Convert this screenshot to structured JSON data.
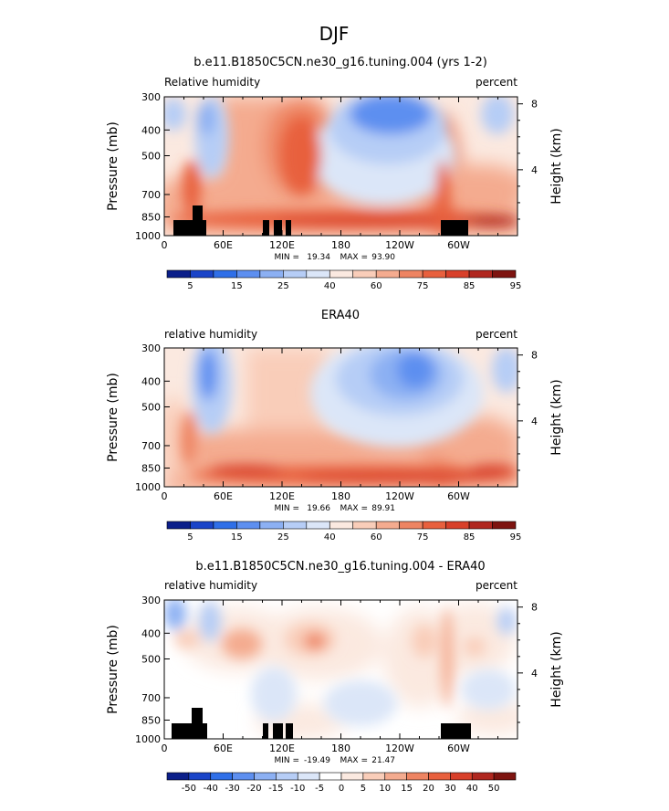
{
  "figure": {
    "title": "DJF"
  },
  "palette": {
    "abs": [
      "#0b1f8a",
      "#1a44c8",
      "#2f6fe8",
      "#5d8ff0",
      "#8cb0f3",
      "#b6cdf6",
      "#dbe6f8",
      "#fbe9e0",
      "#f9cdb9",
      "#f4ab8f",
      "#ee8462",
      "#e8603e",
      "#d8402a",
      "#b0271f",
      "#7e1410"
    ],
    "diff": [
      "#0b1f8a",
      "#1a44c8",
      "#2f6fe8",
      "#5d8ff0",
      "#8cb0f3",
      "#b6cdf6",
      "#dbe6f8",
      "#ffffff",
      "#fbe9e0",
      "#f9cdb9",
      "#f4ab8f",
      "#ee8462",
      "#e8603e",
      "#d8402a",
      "#b0271f",
      "#7e1410"
    ],
    "topography": "#000000"
  },
  "chart_data": [
    {
      "type": "heatmap",
      "title": "b.e11.B1850C5CN.ne30_g16.tuning.004 (yrs 1-2)",
      "left_string": "Relative humidity",
      "right_string": "percent",
      "ylabel": "Pressure (mb)",
      "ylabel_right": "Height (km)",
      "x_ticks": [
        "0",
        "60E",
        "120E",
        "180",
        "120W",
        "60W"
      ],
      "y_ticks": [
        "300",
        "400",
        "500",
        "700",
        "850",
        "1000"
      ],
      "y_right_ticks": [
        "8",
        "4"
      ],
      "stats": {
        "min_label": "MIN =",
        "min": "19.34",
        "max_label": "MAX =",
        "max": "93.90"
      },
      "colorbar_labels": [
        "5",
        "15",
        "25",
        "40",
        "60",
        "75",
        "85",
        "95"
      ],
      "levels": [
        5,
        10,
        15,
        20,
        25,
        30,
        40,
        50,
        60,
        70,
        75,
        80,
        85,
        90,
        95
      ]
    },
    {
      "type": "heatmap",
      "title": "ERA40",
      "left_string": "relative humidity",
      "right_string": "percent",
      "ylabel": "Pressure (mb)",
      "ylabel_right": "Height (km)",
      "x_ticks": [
        "0",
        "60E",
        "120E",
        "180",
        "120W",
        "60W"
      ],
      "y_ticks": [
        "300",
        "400",
        "500",
        "700",
        "850",
        "1000"
      ],
      "y_right_ticks": [
        "8",
        "4"
      ],
      "stats": {
        "min_label": "MIN =",
        "min": "19.66",
        "max_label": "MAX =",
        "max": "89.91"
      },
      "colorbar_labels": [
        "5",
        "15",
        "25",
        "40",
        "60",
        "75",
        "85",
        "95"
      ],
      "levels": [
        5,
        10,
        15,
        20,
        25,
        30,
        40,
        50,
        60,
        70,
        75,
        80,
        85,
        90,
        95
      ]
    },
    {
      "type": "heatmap",
      "title": "b.e11.B1850C5CN.ne30_g16.tuning.004 - ERA40",
      "left_string": "relative humidity",
      "right_string": "percent",
      "ylabel": "Pressure (mb)",
      "ylabel_right": "Height (km)",
      "x_ticks": [
        "0",
        "60E",
        "120E",
        "180",
        "120W",
        "60W"
      ],
      "y_ticks": [
        "300",
        "400",
        "500",
        "700",
        "850",
        "1000"
      ],
      "y_right_ticks": [
        "8",
        "4"
      ],
      "stats": {
        "min_label": "MIN =",
        "min": "-19.49",
        "max_label": "MAX =",
        "max": "21.47"
      },
      "colorbar_labels": [
        "-50",
        "-40",
        "-30",
        "-20",
        "-15",
        "-10",
        "-5",
        "0",
        "5",
        "10",
        "15",
        "20",
        "30",
        "40",
        "50"
      ],
      "levels": [
        -50,
        -40,
        -30,
        -20,
        -15,
        -10,
        -5,
        0,
        5,
        10,
        15,
        20,
        30,
        40,
        50
      ]
    }
  ]
}
